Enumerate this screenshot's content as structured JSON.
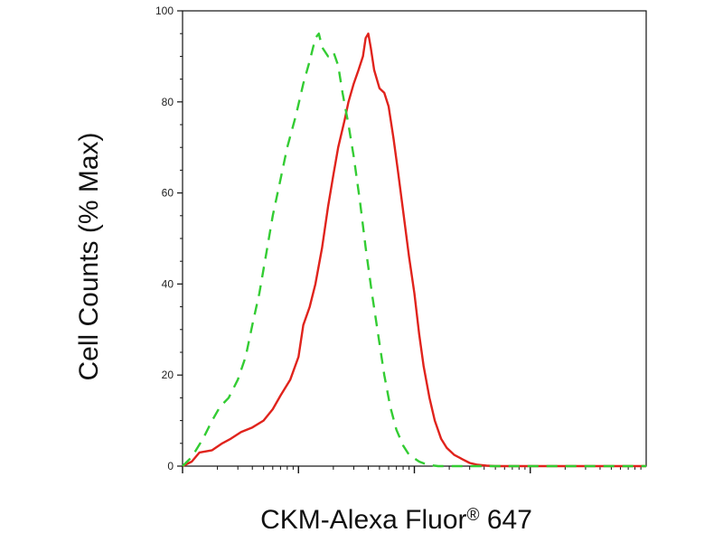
{
  "chart_data": {
    "type": "line",
    "title": "",
    "xlabel": "CKM-Alexa Fluor",
    "xlabel_superscript": "®",
    "xlabel_suffix": " 647",
    "ylabel": "Cell Counts (% Max)",
    "x_scale": "log",
    "xlim": [
      1,
      10000
    ],
    "ylim": [
      0,
      100
    ],
    "y_ticks": [
      0,
      20,
      40,
      60,
      80,
      100
    ],
    "y_tick_labels": [
      "0",
      "20",
      "40",
      "60",
      "80",
      "100"
    ],
    "x_major_ticks": [
      10,
      100,
      1000
    ],
    "grid": false,
    "legend": null,
    "series": [
      {
        "color": "#e0231c",
        "style": "solid",
        "points": [
          [
            1.0,
            0
          ],
          [
            1.2,
            1
          ],
          [
            1.4,
            3
          ],
          [
            1.8,
            3.5
          ],
          [
            2.2,
            5
          ],
          [
            2.6,
            6
          ],
          [
            3.2,
            7.5
          ],
          [
            4.0,
            8.5
          ],
          [
            5.0,
            10
          ],
          [
            6.0,
            12.5
          ],
          [
            7.0,
            15.5
          ],
          [
            8.5,
            19
          ],
          [
            10,
            24
          ],
          [
            11,
            31
          ],
          [
            12.5,
            35
          ],
          [
            14,
            40
          ],
          [
            16,
            48
          ],
          [
            18,
            57
          ],
          [
            20,
            64
          ],
          [
            22,
            70
          ],
          [
            25,
            76
          ],
          [
            27,
            80
          ],
          [
            30,
            84
          ],
          [
            33,
            87
          ],
          [
            36,
            90
          ],
          [
            38,
            94
          ],
          [
            40,
            95
          ],
          [
            42,
            92
          ],
          [
            45,
            87
          ],
          [
            50,
            83
          ],
          [
            55,
            82
          ],
          [
            60,
            79
          ],
          [
            66,
            72
          ],
          [
            72,
            65
          ],
          [
            80,
            56
          ],
          [
            90,
            46
          ],
          [
            100,
            38
          ],
          [
            110,
            29
          ],
          [
            120,
            22
          ],
          [
            135,
            15
          ],
          [
            150,
            10
          ],
          [
            170,
            6
          ],
          [
            190,
            4
          ],
          [
            220,
            2.5
          ],
          [
            260,
            1.5
          ],
          [
            300,
            0.7
          ],
          [
            350,
            0.3
          ],
          [
            420,
            0.1
          ],
          [
            500,
            0
          ],
          [
            10000,
            0
          ]
        ]
      },
      {
        "color": "#33cc33",
        "style": "dashed",
        "points": [
          [
            1.0,
            0
          ],
          [
            1.2,
            2
          ],
          [
            1.5,
            6
          ],
          [
            1.8,
            10
          ],
          [
            2.1,
            13
          ],
          [
            2.5,
            15
          ],
          [
            3.0,
            19
          ],
          [
            3.5,
            24
          ],
          [
            4.0,
            31
          ],
          [
            4.6,
            38
          ],
          [
            5.3,
            47
          ],
          [
            6.0,
            55
          ],
          [
            7.0,
            63
          ],
          [
            8.0,
            70
          ],
          [
            9.5,
            77
          ],
          [
            11,
            84
          ],
          [
            12.5,
            89
          ],
          [
            14,
            94
          ],
          [
            15,
            95
          ],
          [
            16,
            92
          ],
          [
            18,
            90
          ],
          [
            20,
            91
          ],
          [
            22,
            88
          ],
          [
            24,
            82
          ],
          [
            27,
            75
          ],
          [
            30,
            68
          ],
          [
            34,
            58
          ],
          [
            38,
            48
          ],
          [
            43,
            38
          ],
          [
            48,
            30
          ],
          [
            55,
            20
          ],
          [
            62,
            13
          ],
          [
            70,
            8
          ],
          [
            80,
            4.5
          ],
          [
            90,
            2.5
          ],
          [
            110,
            1
          ],
          [
            130,
            0.3
          ],
          [
            160,
            0
          ],
          [
            10000,
            0
          ]
        ]
      }
    ]
  }
}
